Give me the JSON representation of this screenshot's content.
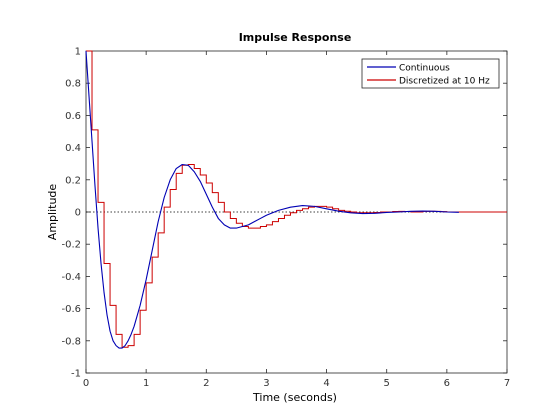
{
  "chart_data": {
    "type": "line",
    "title": "Impulse Response",
    "xlabel": "Time (seconds)",
    "ylabel": "Amplitude",
    "xlim": [
      0,
      7
    ],
    "ylim": [
      -1,
      1
    ],
    "xticks": [
      0,
      1,
      2,
      3,
      4,
      5,
      6,
      7
    ],
    "yticks": [
      -1,
      -0.8,
      -0.6,
      -0.4,
      -0.2,
      0,
      0.2,
      0.4,
      0.6,
      0.8,
      1
    ],
    "ytick_labels": [
      "-1",
      "-0.8",
      "-0.6",
      "-0.4",
      "-0.2",
      "0",
      "0.2",
      "0.4",
      "0.6",
      "0.8",
      "1"
    ],
    "grid": false,
    "zero_line": true,
    "legend_position": "top-right",
    "series": [
      {
        "name": "Continuous",
        "color": "#0000b4",
        "style": "line",
        "x": [
          0,
          0.05,
          0.1,
          0.15,
          0.2,
          0.25,
          0.3,
          0.35,
          0.4,
          0.45,
          0.5,
          0.55,
          0.6,
          0.65,
          0.7,
          0.75,
          0.8,
          0.9,
          1.0,
          1.1,
          1.2,
          1.3,
          1.4,
          1.5,
          1.6,
          1.7,
          1.8,
          1.9,
          2.0,
          2.1,
          2.2,
          2.3,
          2.4,
          2.5,
          2.6,
          2.7,
          2.8,
          2.9,
          3.0,
          3.2,
          3.4,
          3.6,
          3.8,
          4.0,
          4.2,
          4.4,
          4.6,
          4.8,
          5.0,
          5.2,
          5.4,
          5.6,
          5.8,
          6.0,
          6.2
        ],
        "y": [
          1.0,
          0.72,
          0.44,
          0.16,
          -0.1,
          -0.32,
          -0.5,
          -0.64,
          -0.74,
          -0.8,
          -0.83,
          -0.845,
          -0.845,
          -0.83,
          -0.8,
          -0.76,
          -0.71,
          -0.58,
          -0.42,
          -0.24,
          -0.06,
          0.09,
          0.2,
          0.27,
          0.295,
          0.29,
          0.25,
          0.19,
          0.11,
          0.03,
          -0.04,
          -0.08,
          -0.1,
          -0.1,
          -0.09,
          -0.08,
          -0.06,
          -0.04,
          -0.02,
          0.01,
          0.03,
          0.04,
          0.035,
          0.02,
          0.005,
          -0.005,
          -0.01,
          -0.008,
          -0.003,
          0.0,
          0.004,
          0.006,
          0.004,
          0.0,
          -0.002
        ]
      },
      {
        "name": "Discretized at 10 Hz",
        "color": "#cc0000",
        "style": "step",
        "dt": 0.1,
        "values": [
          1.0,
          0.51,
          0.06,
          -0.32,
          -0.58,
          -0.76,
          -0.84,
          -0.83,
          -0.76,
          -0.61,
          -0.44,
          -0.28,
          -0.13,
          0.03,
          0.14,
          0.24,
          0.29,
          0.295,
          0.27,
          0.23,
          0.18,
          0.12,
          0.06,
          0.0,
          -0.04,
          -0.07,
          -0.09,
          -0.1,
          -0.1,
          -0.09,
          -0.08,
          -0.06,
          -0.04,
          -0.02,
          -0.005,
          0.01,
          0.02,
          0.03,
          0.035,
          0.035,
          0.03,
          0.02,
          0.01,
          0.005,
          0.0,
          -0.005,
          -0.005,
          -0.005,
          -0.003,
          0.0,
          0.0,
          0.003,
          0.004,
          0.003,
          0.0,
          0.0,
          0.004,
          0.005,
          0.004,
          0.002,
          0.0,
          0.0
        ]
      }
    ]
  }
}
